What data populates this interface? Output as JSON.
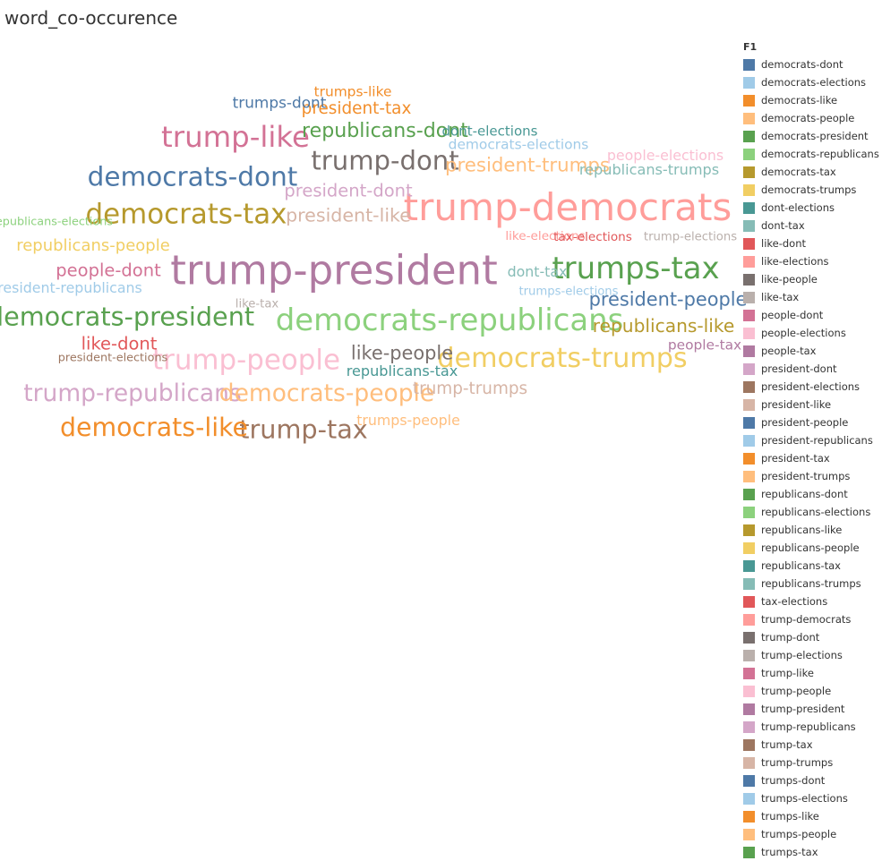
{
  "sheet_title": "word_co-occurence",
  "chart_data": {
    "type": "wordcloud",
    "title": "word_co-occurence",
    "legend_title": "F1",
    "legend_position": "right",
    "words": [
      {
        "text": "trump-president",
        "weight": 100
      },
      {
        "text": "trump-democrats",
        "weight": 92
      },
      {
        "text": "democrats-republicans",
        "weight": 70
      },
      {
        "text": "trumps-tax",
        "weight": 70
      },
      {
        "text": "trump-like",
        "weight": 66
      },
      {
        "text": "democrats-trumps",
        "weight": 60
      },
      {
        "text": "trump-people",
        "weight": 62
      },
      {
        "text": "democrats-tax",
        "weight": 62
      },
      {
        "text": "democrats-dont",
        "weight": 58
      },
      {
        "text": "trump-dont",
        "weight": 57
      },
      {
        "text": "democrats-president",
        "weight": 56
      },
      {
        "text": "trump-tax",
        "weight": 56
      },
      {
        "text": "democrats-like",
        "weight": 55
      },
      {
        "text": "trump-republicans",
        "weight": 50
      },
      {
        "text": "democrats-people",
        "weight": 50
      },
      {
        "text": "president-trumps",
        "weight": 36
      },
      {
        "text": "republicans-dont",
        "weight": 38
      },
      {
        "text": "president-people",
        "weight": 35
      },
      {
        "text": "like-people",
        "weight": 35
      },
      {
        "text": "republicans-like",
        "weight": 33
      },
      {
        "text": "president-like",
        "weight": 34
      },
      {
        "text": "president-dont",
        "weight": 31
      },
      {
        "text": "like-dont",
        "weight": 31
      },
      {
        "text": "people-dont",
        "weight": 31
      },
      {
        "text": "trump-trumps",
        "weight": 28
      },
      {
        "text": "president-tax",
        "weight": 28
      },
      {
        "text": "republicans-people",
        "weight": 27
      },
      {
        "text": "trumps-dont",
        "weight": 24
      },
      {
        "text": "republicans-trumps",
        "weight": 22
      },
      {
        "text": "republicans-tax",
        "weight": 22
      },
      {
        "text": "people-elections",
        "weight": 21
      },
      {
        "text": "trumps-people",
        "weight": 21
      },
      {
        "text": "president-republicans",
        "weight": 21
      },
      {
        "text": "dont-tax",
        "weight": 21
      },
      {
        "text": "trumps-like",
        "weight": 20
      },
      {
        "text": "people-tax",
        "weight": 20
      },
      {
        "text": "democrats-elections",
        "weight": 20
      },
      {
        "text": "dont-elections",
        "weight": 19
      },
      {
        "text": "like-elections",
        "weight": 15
      },
      {
        "text": "tax-elections",
        "weight": 15
      },
      {
        "text": "trump-elections",
        "weight": 14
      },
      {
        "text": "trumps-elections",
        "weight": 14
      },
      {
        "text": "like-tax",
        "weight": 14
      },
      {
        "text": "president-elections",
        "weight": 13
      },
      {
        "text": "republicans-elections",
        "weight": 13
      }
    ],
    "legend_items": [
      {
        "label": "democrats-dont",
        "color": "#4e79a7"
      },
      {
        "label": "democrats-elections",
        "color": "#a0cbe8"
      },
      {
        "label": "democrats-like",
        "color": "#f28e2b"
      },
      {
        "label": "democrats-people",
        "color": "#ffbe7d"
      },
      {
        "label": "democrats-president",
        "color": "#59a14f"
      },
      {
        "label": "democrats-republicans",
        "color": "#8cd17d"
      },
      {
        "label": "democrats-tax",
        "color": "#b6992d"
      },
      {
        "label": "democrats-trumps",
        "color": "#f1ce63"
      },
      {
        "label": "dont-elections",
        "color": "#499894"
      },
      {
        "label": "dont-tax",
        "color": "#86bcb6"
      },
      {
        "label": "like-dont",
        "color": "#e15759"
      },
      {
        "label": "like-elections",
        "color": "#ff9d9a"
      },
      {
        "label": "like-people",
        "color": "#79706e"
      },
      {
        "label": "like-tax",
        "color": "#bab0ac"
      },
      {
        "label": "people-dont",
        "color": "#d37295"
      },
      {
        "label": "people-elections",
        "color": "#fabfd2"
      },
      {
        "label": "people-tax",
        "color": "#b07aa1"
      },
      {
        "label": "president-dont",
        "color": "#d4a6c8"
      },
      {
        "label": "president-elections",
        "color": "#9d7660"
      },
      {
        "label": "president-like",
        "color": "#d7b5a6"
      },
      {
        "label": "president-people",
        "color": "#4e79a7"
      },
      {
        "label": "president-republicans",
        "color": "#a0cbe8"
      },
      {
        "label": "president-tax",
        "color": "#f28e2b"
      },
      {
        "label": "president-trumps",
        "color": "#ffbe7d"
      },
      {
        "label": "republicans-dont",
        "color": "#59a14f"
      },
      {
        "label": "republicans-elections",
        "color": "#8cd17d"
      },
      {
        "label": "republicans-like",
        "color": "#b6992d"
      },
      {
        "label": "republicans-people",
        "color": "#f1ce63"
      },
      {
        "label": "republicans-tax",
        "color": "#499894"
      },
      {
        "label": "republicans-trumps",
        "color": "#86bcb6"
      },
      {
        "label": "tax-elections",
        "color": "#e15759"
      },
      {
        "label": "trump-democrats",
        "color": "#ff9d9a"
      },
      {
        "label": "trump-dont",
        "color": "#79706e"
      },
      {
        "label": "trump-elections",
        "color": "#bab0ac"
      },
      {
        "label": "trump-like",
        "color": "#d37295"
      },
      {
        "label": "trump-people",
        "color": "#fabfd2"
      },
      {
        "label": "trump-president",
        "color": "#b07aa1"
      },
      {
        "label": "trump-republicans",
        "color": "#d4a6c8"
      },
      {
        "label": "trump-tax",
        "color": "#9d7660"
      },
      {
        "label": "trump-trumps",
        "color": "#d7b5a6"
      },
      {
        "label": "trumps-dont",
        "color": "#4e79a7"
      },
      {
        "label": "trumps-elections",
        "color": "#a0cbe8"
      },
      {
        "label": "trumps-like",
        "color": "#f28e2b"
      },
      {
        "label": "trumps-people",
        "color": "#ffbe7d"
      },
      {
        "label": "trumps-tax",
        "color": "#59a14f"
      }
    ]
  }
}
